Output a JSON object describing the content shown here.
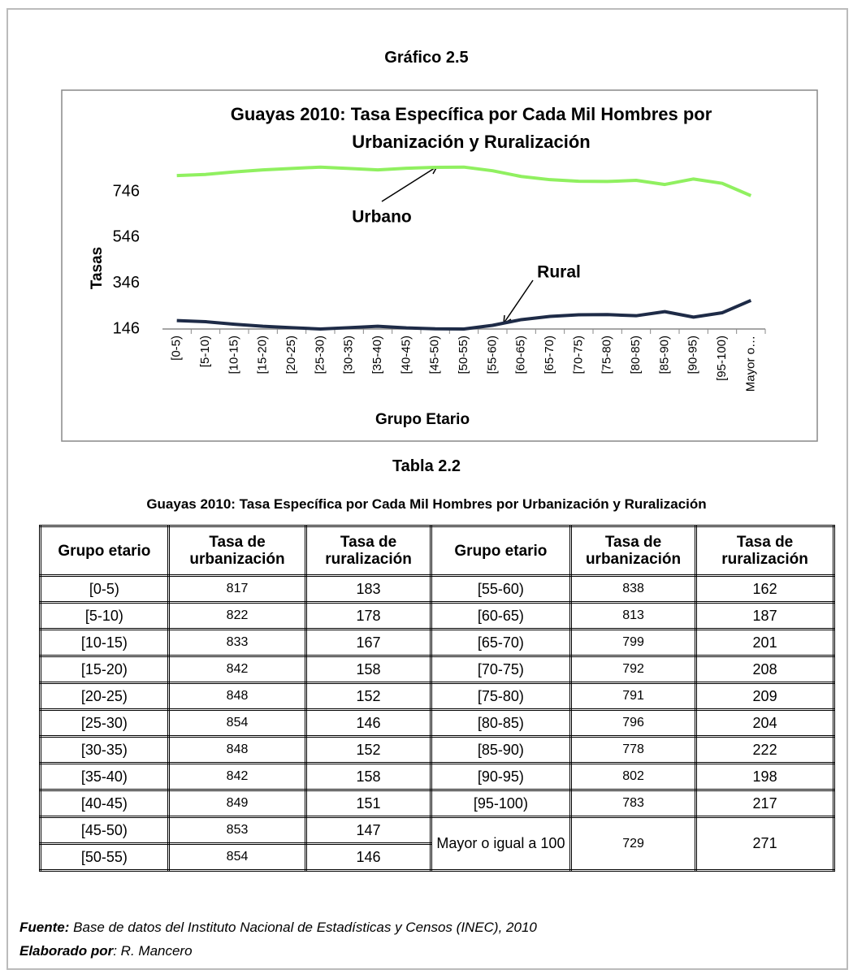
{
  "heading": "Gráfico 2.5",
  "chart_data": {
    "type": "line",
    "title": [
      "Guayas 2010: Tasa Específica por Cada Mil  Hombres por",
      "Urbanización y Ruralización"
    ],
    "y_label": "Tasas",
    "x_label": "Grupo Etario",
    "categories": [
      "[0-5)",
      "[5-10)",
      "[10-15)",
      "[15-20)",
      "[20-25)",
      "[25-30)",
      "[30-35)",
      "[35-40)",
      "[40-45)",
      "[45-50)",
      "[50-55)",
      "[55-60)",
      "[60-65)",
      "[65-70)",
      "[70-75)",
      "[75-80)",
      "[80-85)",
      "[85-90)",
      "[90-95)",
      "[95-100)",
      "Mayor o…"
    ],
    "series": [
      {
        "name": "Urbano",
        "color": "#90f060",
        "values": [
          817,
          822,
          833,
          842,
          848,
          854,
          848,
          842,
          849,
          853,
          854,
          838,
          813,
          799,
          792,
          791,
          796,
          778,
          802,
          783,
          729
        ]
      },
      {
        "name": "Rural",
        "color": "#1e2b47",
        "values": [
          183,
          178,
          167,
          158,
          152,
          146,
          152,
          158,
          151,
          147,
          146,
          162,
          187,
          201,
          208,
          209,
          204,
          222,
          198,
          217,
          271
        ]
      }
    ],
    "ylim": [
      146,
      880
    ],
    "yticks": [
      146,
      346,
      546,
      746
    ],
    "grid": false
  },
  "table_heading": "Tabla 2.2",
  "table": {
    "title": "Guayas 2010: Tasa Específica por Cada Mil  Hombres por  Urbanización y Ruralización",
    "columns": [
      "Grupo etario",
      "Tasa de urbanización",
      "Tasa de ruralización",
      "Grupo etario",
      "Tasa de urbanización",
      "Tasa de ruralización"
    ],
    "rows": [
      [
        "[0-5)",
        817,
        183,
        "[55-60)",
        838,
        162
      ],
      [
        "[5-10)",
        822,
        178,
        "[60-65)",
        813,
        187
      ],
      [
        "[10-15)",
        833,
        167,
        "[65-70)",
        799,
        201
      ],
      [
        "[15-20)",
        842,
        158,
        "[70-75)",
        792,
        208
      ],
      [
        "[20-25)",
        848,
        152,
        "[75-80)",
        791,
        209
      ],
      [
        "[25-30)",
        854,
        146,
        "[80-85)",
        796,
        204
      ],
      [
        "[30-35)",
        848,
        152,
        "[85-90)",
        778,
        222
      ],
      [
        "[35-40)",
        842,
        158,
        "[90-95)",
        802,
        198
      ],
      [
        "[40-45)",
        849,
        151,
        "[95-100)",
        783,
        217
      ],
      [
        "[45-50)",
        853,
        147,
        "Mayor o igual a 100",
        729,
        271
      ],
      [
        "[50-55)",
        854,
        146
      ]
    ]
  },
  "footer": {
    "source_label": "Fuente:",
    "source": " Base de datos del  Instituto Nacional de Estadísticas y Censos  (INEC), 2010",
    "author_label": "Elaborado por",
    "author": ": R. Mancero"
  }
}
